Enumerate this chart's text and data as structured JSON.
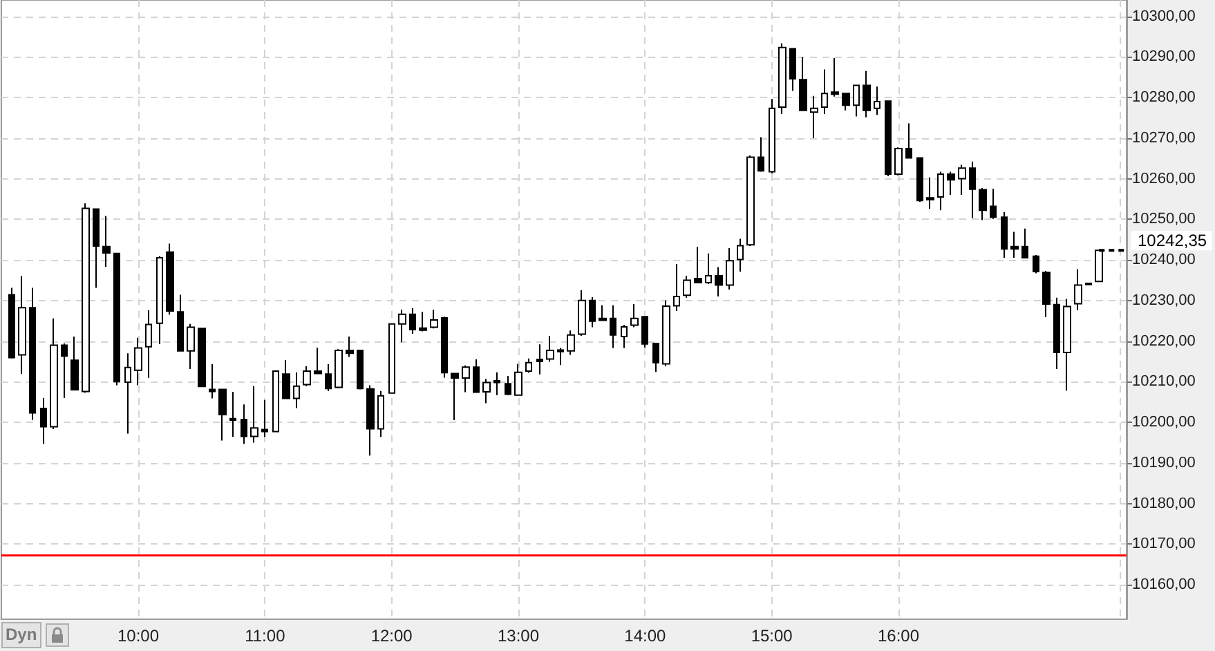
{
  "chart_data": {
    "type": "candlestick",
    "color": "#000000",
    "x": [
      9,
      9.0833,
      9.1667,
      9.25,
      9.3333,
      9.4167,
      9.5,
      9.5833,
      9.6667,
      9.75,
      9.8333,
      9.9167,
      10,
      10.0833,
      10.1667,
      10.25,
      10.3333,
      10.4167,
      10.5,
      10.5833,
      10.6667,
      10.75,
      10.8333,
      10.9167,
      11,
      11.0833,
      11.1667,
      11.25,
      11.3333,
      11.4167,
      11.5,
      11.5833,
      11.6667,
      11.75,
      11.8333,
      11.9167,
      12,
      12.0833,
      12.1667,
      12.25,
      12.3333,
      12.4167,
      12.5,
      12.5833,
      12.6667,
      12.75,
      12.8333,
      12.9167,
      13,
      13.0833,
      13.1667,
      13.25,
      13.3333,
      13.4167,
      13.5,
      13.5833,
      13.6667,
      13.75,
      13.8333,
      13.9167,
      14,
      14.0833,
      14.1667,
      14.25,
      14.3333,
      14.4167,
      14.5,
      14.5833,
      14.6667,
      14.75,
      14.8333,
      14.9167,
      15,
      15.0833,
      15.1667,
      15.25,
      15.3333,
      15.4167,
      15.5,
      15.5833,
      15.6667,
      15.75,
      15.8333,
      15.9167,
      16,
      16.0833,
      16.1667,
      16.25,
      16.3333,
      16.4167,
      16.5,
      16.5833,
      16.6667,
      16.75,
      16.8333,
      16.9167,
      17,
      17.0833,
      17.1667,
      17.25,
      17.3333,
      17.4167,
      17.5,
      17.5833
    ],
    "ohlc": [
      [
        10231.4,
        10233.1,
        10215.7,
        10215.9
      ],
      [
        10216.6,
        10236.0,
        10211.9,
        10228.2
      ],
      [
        10228.2,
        10233.1,
        10200.6,
        10202.3
      ],
      [
        10203.4,
        10206.0,
        10194.7,
        10198.9
      ],
      [
        10198.9,
        10225.6,
        10198.3,
        10219.0
      ],
      [
        10219.0,
        10219.4,
        10206.0,
        10216.3
      ],
      [
        10215.3,
        10221.1,
        10208.0,
        10208.0
      ],
      [
        10207.6,
        10253.9,
        10207.3,
        10252.7
      ],
      [
        10252.5,
        10252.5,
        10233.1,
        10243.4
      ],
      [
        10243.3,
        10250.8,
        10238.3,
        10241.7
      ],
      [
        10241.6,
        10241.6,
        10209.1,
        10210.0
      ],
      [
        10209.9,
        10217.0,
        10197.2,
        10213.5
      ],
      [
        10212.8,
        10220.8,
        10209.1,
        10218.3
      ],
      [
        10218.6,
        10227.6,
        10210.9,
        10224.1
      ],
      [
        10224.4,
        10240.9,
        10219.3,
        10240.5
      ],
      [
        10241.9,
        10244.0,
        10226.5,
        10227.4
      ],
      [
        10227.2,
        10231.4,
        10217.6,
        10217.6
      ],
      [
        10217.6,
        10224.2,
        10213.1,
        10223.4
      ],
      [
        10223.1,
        10223.1,
        10208.8,
        10208.8
      ],
      [
        10208.1,
        10214.3,
        10205.9,
        10207.6
      ],
      [
        10208.1,
        10208.1,
        10195.5,
        10201.9
      ],
      [
        10200.9,
        10207.5,
        10196.4,
        10200.5
      ],
      [
        10200.7,
        10204.4,
        10194.7,
        10196.5
      ],
      [
        10196.5,
        10208.9,
        10195.0,
        10198.6
      ],
      [
        10198.2,
        10205.5,
        10196.4,
        10197.7
      ],
      [
        10197.7,
        10212.8,
        10197.7,
        10212.6
      ],
      [
        10211.9,
        10215.3,
        10205.9,
        10205.9
      ],
      [
        10205.9,
        10212.3,
        10203.5,
        10208.9
      ],
      [
        10209.3,
        10213.8,
        10208.9,
        10212.6
      ],
      [
        10212.6,
        10218.4,
        10212.0,
        10212.0
      ],
      [
        10211.9,
        10214.3,
        10207.7,
        10208.3
      ],
      [
        10208.6,
        10218.0,
        10208.4,
        10217.7
      ],
      [
        10217.7,
        10221.1,
        10216.1,
        10217.0
      ],
      [
        10217.7,
        10217.7,
        10208.1,
        10208.3
      ],
      [
        10208.2,
        10209.1,
        10191.8,
        10198.4
      ],
      [
        10198.4,
        10207.7,
        10196.4,
        10206.5
      ],
      [
        10207.2,
        10224.2,
        10207.2,
        10224.2
      ],
      [
        10224.2,
        10227.7,
        10219.7,
        10226.6
      ],
      [
        10226.6,
        10228.1,
        10221.8,
        10222.8
      ],
      [
        10223.2,
        10227.2,
        10222.4,
        10222.7
      ],
      [
        10223.4,
        10227.7,
        10223.1,
        10225.2
      ],
      [
        10225.7,
        10226.0,
        10211.0,
        10212.2
      ],
      [
        10212.0,
        10212.0,
        10200.5,
        10210.9
      ],
      [
        10210.9,
        10214.0,
        10207.4,
        10213.6
      ],
      [
        10213.6,
        10215.5,
        10207.4,
        10207.4
      ],
      [
        10207.5,
        10210.7,
        10204.7,
        10209.8
      ],
      [
        10210.2,
        10212.3,
        10206.7,
        10209.8
      ],
      [
        10209.5,
        10211.4,
        10206.7,
        10206.9
      ],
      [
        10206.7,
        10214.4,
        10206.5,
        10212.3
      ],
      [
        10212.6,
        10215.7,
        10212.2,
        10214.7
      ],
      [
        10215.5,
        10219.2,
        10211.8,
        10215.0
      ],
      [
        10215.6,
        10221.3,
        10214.9,
        10217.7
      ],
      [
        10217.8,
        10218.3,
        10214.1,
        10217.4
      ],
      [
        10217.6,
        10222.6,
        10216.6,
        10221.5
      ],
      [
        10221.7,
        10232.5,
        10221.3,
        10230.0
      ],
      [
        10230.0,
        10230.8,
        10223.4,
        10224.9
      ],
      [
        10225.6,
        10228.8,
        10225.1,
        10225.1
      ],
      [
        10225.6,
        10228.8,
        10218.3,
        10221.5
      ],
      [
        10221.1,
        10224.0,
        10218.3,
        10223.5
      ],
      [
        10223.9,
        10229.1,
        10223.4,
        10225.6
      ],
      [
        10226.0,
        10226.0,
        10218.4,
        10219.3
      ],
      [
        10219.4,
        10219.4,
        10212.4,
        10214.7
      ],
      [
        10214.4,
        10230.0,
        10213.8,
        10228.6
      ],
      [
        10228.7,
        10239.0,
        10227.4,
        10231.0
      ],
      [
        10231.3,
        10236.1,
        10230.7,
        10235.0
      ],
      [
        10235.4,
        10243.2,
        10234.4,
        10234.4
      ],
      [
        10234.4,
        10241.6,
        10234.1,
        10236.1
      ],
      [
        10236.1,
        10238.2,
        10231.0,
        10233.8
      ],
      [
        10233.8,
        10242.9,
        10232.7,
        10239.8
      ],
      [
        10240.1,
        10245.2,
        10237.1,
        10243.5
      ],
      [
        10243.7,
        10265.7,
        10243.4,
        10265.3
      ],
      [
        10265.3,
        10270.2,
        10261.7,
        10261.9
      ],
      [
        10261.7,
        10279.6,
        10261.3,
        10277.3
      ],
      [
        10277.6,
        10293.3,
        10275.9,
        10292.3
      ],
      [
        10292.0,
        10292.0,
        10281.6,
        10284.6
      ],
      [
        10284.4,
        10289.9,
        10276.8,
        10276.8
      ],
      [
        10276.4,
        10280.4,
        10270.0,
        10277.3
      ],
      [
        10277.6,
        10286.9,
        10275.9,
        10281.0
      ],
      [
        10281.3,
        10289.7,
        10280.2,
        10280.8
      ],
      [
        10281.0,
        10281.0,
        10276.8,
        10278.1
      ],
      [
        10278.1,
        10283.0,
        10275.3,
        10283.0
      ],
      [
        10283.0,
        10286.5,
        10275.1,
        10276.8
      ],
      [
        10277.3,
        10282.7,
        10275.7,
        10279.0
      ],
      [
        10279.1,
        10279.1,
        10260.6,
        10261.1
      ],
      [
        10261.1,
        10267.7,
        10260.8,
        10267.4
      ],
      [
        10267.4,
        10273.6,
        10265.1,
        10265.1
      ],
      [
        10265.1,
        10265.1,
        10254.3,
        10254.6
      ],
      [
        10255.3,
        10260.3,
        10252.6,
        10254.8
      ],
      [
        10255.5,
        10261.7,
        10252.2,
        10261.1
      ],
      [
        10261.1,
        10261.7,
        10256.0,
        10259.7
      ],
      [
        10260.0,
        10263.4,
        10256.0,
        10262.6
      ],
      [
        10262.6,
        10264.2,
        10250.3,
        10257.4
      ],
      [
        10257.3,
        10257.7,
        10249.8,
        10252.2
      ],
      [
        10253.2,
        10257.5,
        10250.1,
        10250.5
      ],
      [
        10250.5,
        10251.8,
        10240.5,
        10242.7
      ],
      [
        10243.3,
        10246.9,
        10240.5,
        10242.7
      ],
      [
        10243.3,
        10247.7,
        10240.5,
        10240.5
      ],
      [
        10240.9,
        10241.2,
        10236.7,
        10237.1
      ],
      [
        10236.9,
        10237.3,
        10225.9,
        10229.1
      ],
      [
        10229.0,
        10230.7,
        10213.1,
        10217.2
      ],
      [
        10217.2,
        10230.4,
        10207.8,
        10228.5
      ],
      [
        10229.2,
        10237.7,
        10227.6,
        10233.8
      ],
      [
        10234.2,
        10234.3,
        10233.8,
        10233.9
      ],
      [
        10234.7,
        10242.35,
        10234.7,
        10242.35
      ]
    ],
    "xlim": [
      8.92,
      17.8
    ],
    "xticks": [
      {
        "value": 10,
        "label": "10:00"
      },
      {
        "value": 11,
        "label": "11:00"
      },
      {
        "value": 12,
        "label": "12:00"
      },
      {
        "value": 13,
        "label": "13:00"
      },
      {
        "value": 14,
        "label": "14:00"
      },
      {
        "value": 15,
        "label": "15:00"
      },
      {
        "value": 16,
        "label": "16:00"
      },
      {
        "value": 17.75,
        "label": null
      }
    ],
    "ylim": [
      10151.5,
      10304
    ],
    "yticks": [
      {
        "value": 10160,
        "label": "10160,00"
      },
      {
        "value": 10170,
        "label": "10170,00"
      },
      {
        "value": 10180,
        "label": "10180,00"
      },
      {
        "value": 10190,
        "label": "10190,00"
      },
      {
        "value": 10200,
        "label": "10200,00"
      },
      {
        "value": 10210,
        "label": "10210,00"
      },
      {
        "value": 10220,
        "label": "10220,00"
      },
      {
        "value": 10230,
        "label": "10230,00"
      },
      {
        "value": 10240,
        "label": "10240,00"
      },
      {
        "value": 10250,
        "label": "10250,00"
      },
      {
        "value": 10260,
        "label": "10260,00"
      },
      {
        "value": 10270,
        "label": "10270,00"
      },
      {
        "value": 10280,
        "label": "10280,00"
      },
      {
        "value": 10290,
        "label": "10290,00"
      },
      {
        "value": 10300,
        "label": "10300,00"
      }
    ],
    "grid": true,
    "ref_lines": [
      {
        "axis": "y",
        "value": 10167.2,
        "color": "#ff0000"
      },
      {
        "axis": "y",
        "value": 10242.35,
        "label": "10242,35",
        "color": "#000000",
        "line_style": "dashed"
      }
    ],
    "annotations": [
      "Dyn"
    ]
  }
}
